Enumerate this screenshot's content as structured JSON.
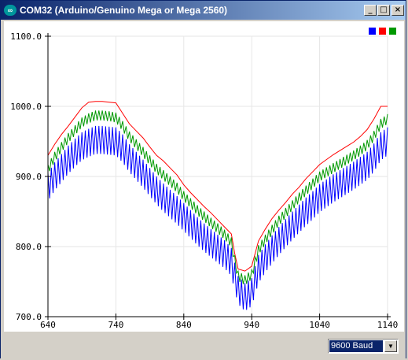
{
  "window": {
    "title": "COM32 (Arduino/Genuino Mega or Mega 2560)",
    "app_icon_glyph": "∞",
    "minimize_glyph": "_",
    "maximize_glyph": "□",
    "close_glyph": "×"
  },
  "legend": {
    "colors": [
      "#0000ff",
      "#ff0000",
      "#009900"
    ]
  },
  "statusbar": {
    "baud": "9600 Baud",
    "dropdown_icon": "chevron-down-icon"
  },
  "chart_data": {
    "type": "line",
    "title": "",
    "xlabel": "",
    "ylabel": "",
    "xlim": [
      640,
      1140
    ],
    "ylim": [
      700,
      1100
    ],
    "x_ticks": [
      "640",
      "740",
      "840",
      "940",
      "1040",
      "1140"
    ],
    "y_ticks": [
      "700.0",
      "800.0",
      "900.0",
      "1000.0",
      "1100.0"
    ],
    "grid": true,
    "legend_placement": "top-right",
    "series": [
      {
        "color": "#ff0000",
        "x": [
          640,
          650,
          660,
          670,
          680,
          690,
          700,
          710,
          720,
          730,
          740,
          750,
          760,
          770,
          780,
          790,
          800,
          810,
          820,
          830,
          840,
          850,
          860,
          870,
          880,
          890,
          900,
          910,
          915,
          920,
          930,
          940,
          945,
          950,
          960,
          970,
          980,
          990,
          1000,
          1010,
          1020,
          1030,
          1040,
          1050,
          1060,
          1070,
          1080,
          1090,
          1100,
          1110,
          1120,
          1130,
          1140
        ],
        "y": [
          930,
          946,
          960,
          972,
          985,
          998,
          1006,
          1007,
          1007,
          1006,
          1005,
          990,
          975,
          965,
          955,
          942,
          930,
          922,
          912,
          902,
          888,
          877,
          867,
          857,
          848,
          838,
          828,
          818,
          790,
          768,
          765,
          772,
          790,
          808,
          825,
          840,
          852,
          863,
          875,
          885,
          897,
          907,
          917,
          924,
          931,
          937,
          943,
          949,
          957,
          967,
          982,
          1000,
          1000
        ]
      },
      {
        "color": "#009900",
        "x": [
          640,
          650,
          660,
          670,
          680,
          690,
          700,
          710,
          720,
          730,
          740,
          750,
          760,
          770,
          780,
          790,
          800,
          810,
          820,
          830,
          840,
          850,
          860,
          870,
          880,
          890,
          900,
          910,
          915,
          920,
          930,
          940,
          945,
          950,
          960,
          970,
          980,
          990,
          1000,
          1010,
          1020,
          1030,
          1040,
          1050,
          1060,
          1070,
          1080,
          1090,
          1100,
          1110,
          1120,
          1130,
          1140
        ],
        "y": [
          910,
          928,
          942,
          955,
          966,
          977,
          983,
          987,
          987,
          986,
          984,
          972,
          957,
          946,
          935,
          923,
          911,
          902,
          893,
          884,
          872,
          862,
          852,
          843,
          834,
          826,
          817,
          806,
          780,
          758,
          752,
          760,
          778,
          795,
          810,
          824,
          837,
          848,
          859,
          870,
          880,
          890,
          900,
          906,
          912,
          918,
          924,
          930,
          937,
          945,
          958,
          975,
          982
        ],
        "amplitude": 14
      },
      {
        "color": "#0000ff",
        "x": [
          640,
          650,
          660,
          670,
          680,
          690,
          700,
          710,
          720,
          730,
          740,
          750,
          760,
          770,
          780,
          790,
          800,
          810,
          820,
          830,
          840,
          850,
          860,
          870,
          880,
          890,
          900,
          910,
          915,
          920,
          930,
          940,
          945,
          950,
          960,
          970,
          980,
          990,
          1000,
          1010,
          1020,
          1030,
          1040,
          1050,
          1060,
          1070,
          1080,
          1090,
          1100,
          1110,
          1120,
          1130,
          1140
        ],
        "y": [
          885,
          900,
          912,
          924,
          934,
          943,
          948,
          952,
          952,
          951,
          950,
          940,
          926,
          915,
          904,
          892,
          880,
          870,
          861,
          852,
          842,
          832,
          822,
          813,
          805,
          797,
          789,
          778,
          757,
          738,
          728,
          735,
          752,
          768,
          783,
          796,
          808,
          819,
          830,
          840,
          850,
          859,
          869,
          876,
          883,
          889,
          895,
          901,
          908,
          915,
          927,
          943,
          950
        ],
        "amplitude": 40
      }
    ]
  }
}
